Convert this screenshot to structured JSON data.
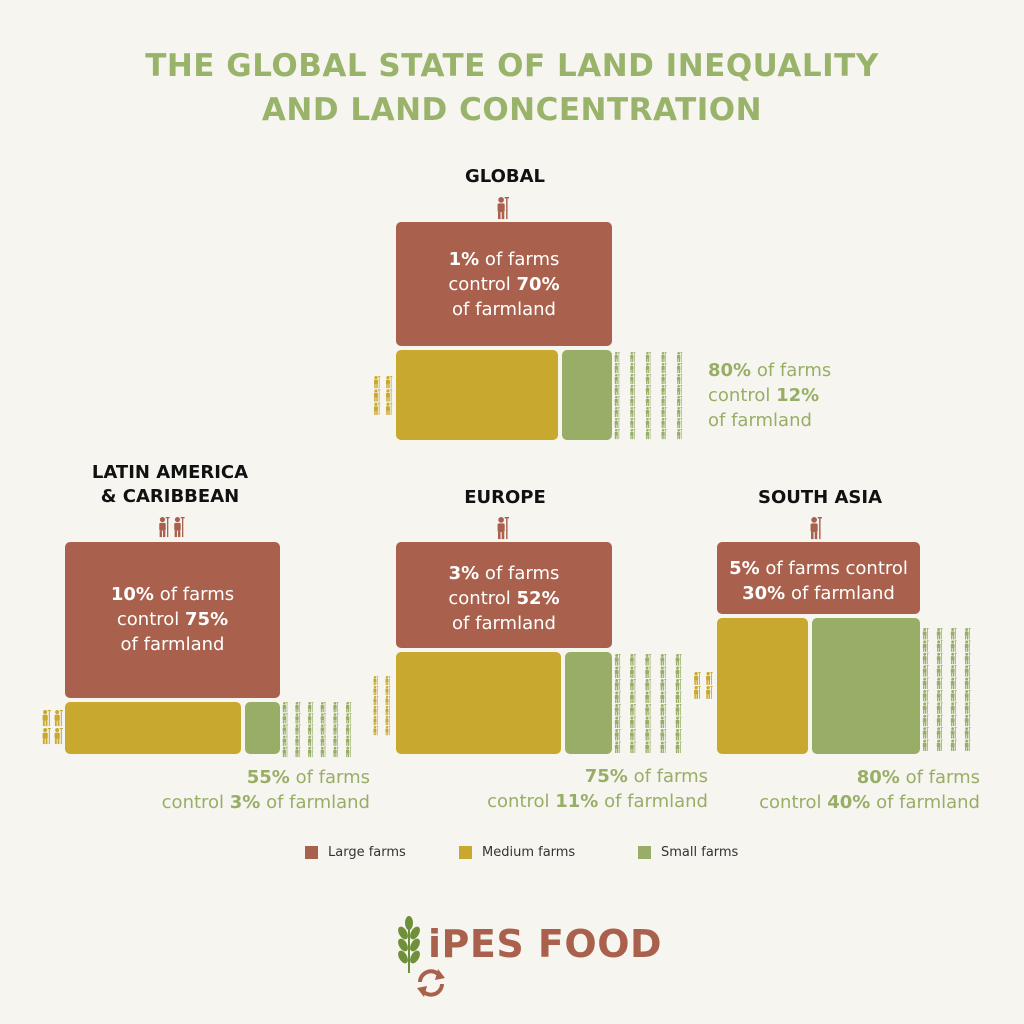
{
  "title_line1": "THE GLOBAL STATE OF LAND INEQUALITY",
  "title_line2": "AND LAND CONCENTRATION",
  "colors": {
    "large": "#a9614d",
    "medium": "#c9a830",
    "small": "#98ae67",
    "title": "#9ab36a"
  },
  "regions": {
    "global": {
      "title": "GLOBAL",
      "large_pct": "1%",
      "large_mid": " of farms",
      "large_line2a": "control ",
      "large_land": "70%",
      "large_line3": "of farmland",
      "small_pct": "80%",
      "small_mid": " of farms",
      "small_line2a": "control ",
      "small_land": "12%",
      "small_line3": "of farmland"
    },
    "latam": {
      "title_line1": "LATIN AMERICA",
      "title_line2": "& CARIBBEAN",
      "large_pct": "10%",
      "large_mid": " of farms",
      "large_line2a": "control ",
      "large_land": "75%",
      "large_line3": "of farmland",
      "small_pct": "55%",
      "small_mid": " of farms",
      "small_line2a": "control ",
      "small_land": "3%",
      "small_line2b": " of farmland"
    },
    "europe": {
      "title": "EUROPE",
      "large_pct": "3%",
      "large_mid": " of farms",
      "large_line2a": "control ",
      "large_land": "52%",
      "large_line3": "of farmland",
      "small_pct": "75%",
      "small_mid": " of farms",
      "small_line2a": "control ",
      "small_land": "11%",
      "small_line2b": " of farmland"
    },
    "south_asia": {
      "title": "SOUTH ASIA",
      "large_pct": "5%",
      "large_mid": " of farms control",
      "large_land": "30%",
      "large_line2b": " of farmland",
      "small_pct": "80%",
      "small_mid": " of farms",
      "small_line2a": "control ",
      "small_land": "40%",
      "small_line2b": " of farmland"
    }
  },
  "legend": {
    "large": "Large farms",
    "medium": "Medium farms",
    "small": "Small farms"
  },
  "logo": {
    "text": "iPES FOOD"
  },
  "chart_data": [
    {
      "type": "bar",
      "region": "GLOBAL",
      "categories": [
        "Large farms",
        "Small farms"
      ],
      "farms_pct": [
        1,
        80
      ],
      "farmland_pct": [
        70,
        12
      ]
    },
    {
      "type": "bar",
      "region": "LATIN AMERICA & CARIBBEAN",
      "categories": [
        "Large farms",
        "Small farms"
      ],
      "farms_pct": [
        10,
        55
      ],
      "farmland_pct": [
        75,
        3
      ]
    },
    {
      "type": "bar",
      "region": "EUROPE",
      "categories": [
        "Large farms",
        "Small farms"
      ],
      "farms_pct": [
        3,
        75
      ],
      "farmland_pct": [
        52,
        11
      ]
    },
    {
      "type": "bar",
      "region": "SOUTH ASIA",
      "categories": [
        "Large farms",
        "Small farms"
      ],
      "farms_pct": [
        5,
        80
      ],
      "farmland_pct": [
        30,
        40
      ]
    }
  ]
}
